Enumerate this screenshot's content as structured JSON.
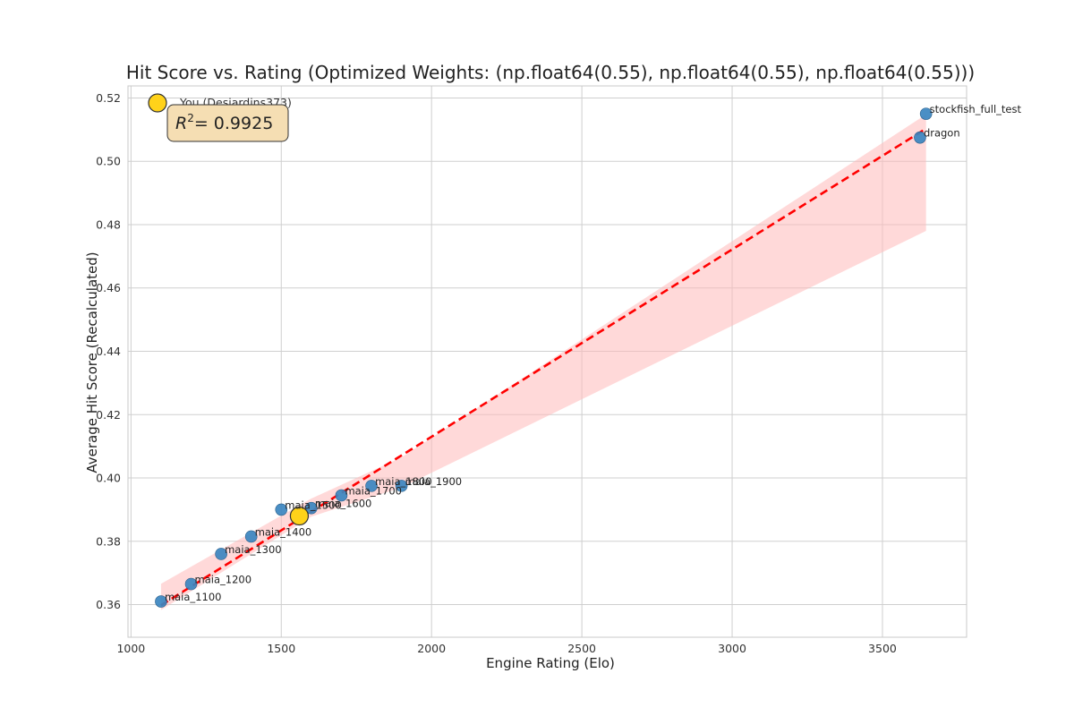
{
  "chart_data": {
    "type": "scatter",
    "title": "Hit Score vs. Rating (Optimized Weights: (np.float64(0.55), np.float64(0.55), np.float64(0.55)))",
    "xlabel": "Engine Rating (Elo)",
    "ylabel": "Average Hit Score (Recalculated)",
    "xlim": [
      990,
      3780
    ],
    "ylim": [
      0.3497,
      0.5238
    ],
    "xticks": [
      1000,
      1500,
      2000,
      2500,
      3000,
      3500
    ],
    "yticks": [
      0.36,
      0.38,
      0.4,
      0.42,
      0.44,
      0.46,
      0.48,
      0.5,
      0.52
    ],
    "xtick_labels": [
      "1000",
      "1500",
      "2000",
      "2500",
      "3000",
      "3500"
    ],
    "ytick_labels": [
      "0.36",
      "0.38",
      "0.40",
      "0.42",
      "0.44",
      "0.46",
      "0.48",
      "0.50",
      "0.52"
    ],
    "grid": true,
    "legend_position": "top-left",
    "colors": {
      "points": "#3b86c0",
      "you": "#ffd21a",
      "fit_line": "#ff0000",
      "band": "#ffbaba",
      "r2_box": "#f5deb3"
    },
    "series": [
      {
        "values": [
          {
            "label": "maia_1100",
            "x": 1100,
            "y": 0.361
          },
          {
            "label": "maia_1200",
            "x": 1200,
            "y": 0.3665
          },
          {
            "label": "maia_1300",
            "x": 1300,
            "y": 0.376
          },
          {
            "label": "maia_1400",
            "x": 1400,
            "y": 0.3815
          },
          {
            "label": "maia_1500",
            "x": 1500,
            "y": 0.39
          },
          {
            "label": "maia_1600",
            "x": 1600,
            "y": 0.3905
          },
          {
            "label": "maia_1700",
            "x": 1700,
            "y": 0.3945
          },
          {
            "label": "maia_1800",
            "x": 1800,
            "y": 0.3975
          },
          {
            "label": "maia_1900",
            "x": 1900,
            "y": 0.3975
          },
          {
            "label": "dragon",
            "x": 3625,
            "y": 0.5075
          },
          {
            "label": "stockfish_full_test",
            "x": 3645,
            "y": 0.515
          }
        ]
      },
      {
        "name": "You (Desjardins373)",
        "values": [
          {
            "label": "1560",
            "x": 1560,
            "y": 0.388
          }
        ]
      }
    ],
    "fit_line": {
      "x": [
        1100,
        3645
      ],
      "y": [
        0.3598,
        0.5103
      ]
    },
    "confidence_band": {
      "x": [
        1100,
        1600,
        1900,
        3645
      ],
      "upper": [
        0.3666,
        0.3935,
        0.4065,
        0.5148
      ],
      "lower": [
        0.3583,
        0.3878,
        0.397,
        0.478
      ]
    },
    "annotation": {
      "r2_text": "= 0.9925"
    }
  }
}
